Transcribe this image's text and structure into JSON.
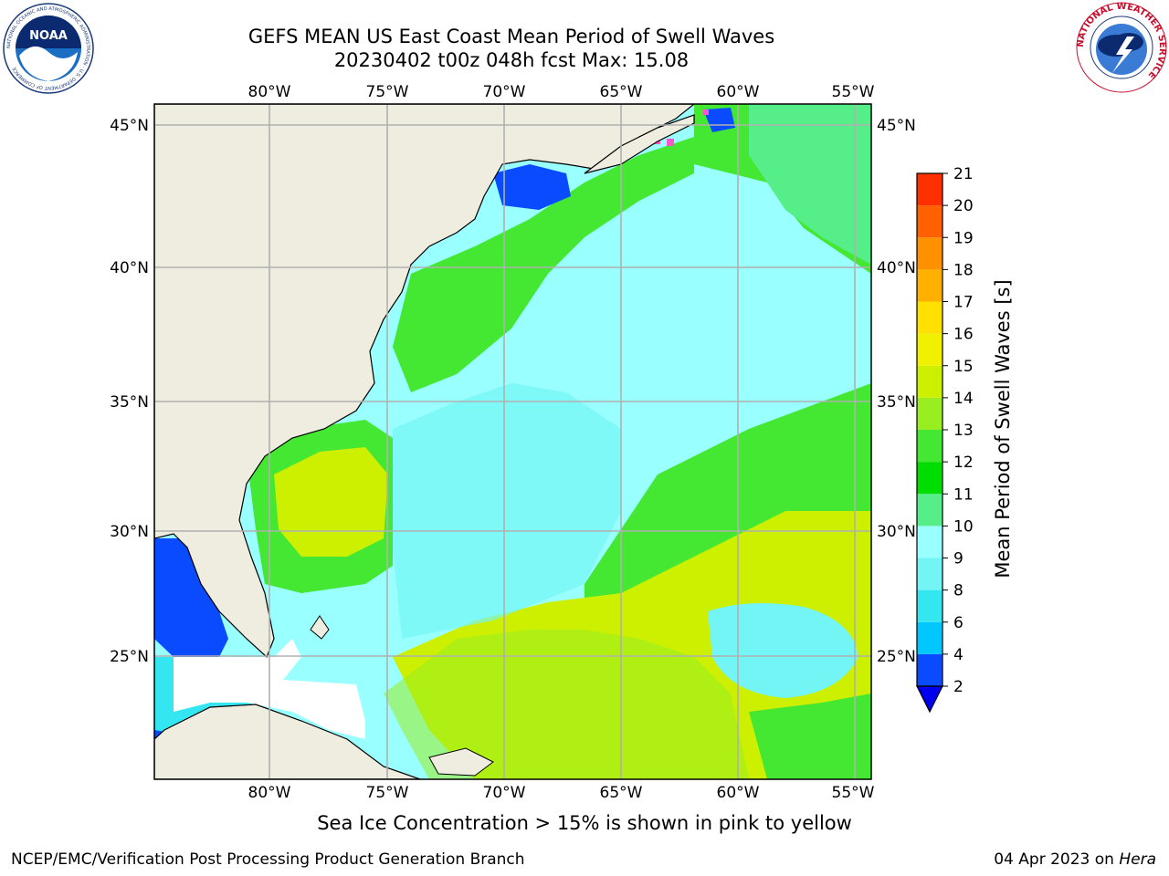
{
  "header": {
    "title_line1": "GEFS MEAN US East Coast Mean Period of Swell Waves",
    "title_line2": "20230402 t00z 048h fcst   Max: 15.08"
  },
  "chart_data": {
    "type": "heatmap",
    "variable": "Mean Period of Swell Waves",
    "colorbar_label": "Mean Period of Swell Waves [s]",
    "colorbar_ticks": [
      2,
      4,
      6,
      8,
      9,
      10,
      11,
      12,
      13,
      14,
      15,
      16,
      17,
      18,
      19,
      20,
      21
    ],
    "colorbar_colors": [
      "#0a4bff",
      "#00c8ff",
      "#33e6f0",
      "#73f5f5",
      "#99ffff",
      "#55ee88",
      "#00dd00",
      "#44e833",
      "#99ee22",
      "#ccf000",
      "#f0f000",
      "#ffe000",
      "#ffb000",
      "#ff9000",
      "#ff6000",
      "#ff3000",
      "#ff0000"
    ],
    "colorbar_extend": "min",
    "max_value": 15.08,
    "lon_ticks": [
      "80°W",
      "75°W",
      "70°W",
      "65°W",
      "60°W",
      "55°W"
    ],
    "lat_ticks": [
      "45°N",
      "40°N",
      "35°N",
      "30°N",
      "25°N"
    ],
    "lon_range": [
      -85,
      -54
    ],
    "lat_range": [
      20.5,
      45.8
    ],
    "grid": true,
    "land_color": "#eeede0",
    "ice_note": "Sea Ice Concentration > 15% is shown in pink to yellow"
  },
  "footer": {
    "left": "NCEP/EMC/Verification Post Processing Product Generation Branch",
    "date": "04 Apr 2023 on ",
    "machine": "Hera"
  },
  "logos": {
    "noaa_icon": "noaa-logo",
    "nws_icon": "nws-logo",
    "noaa_text": "NOAA",
    "noaa_ring_text": "NATIONAL OCEANIC AND ATMOSPHERIC ADMINISTRATION · U.S. DEPARTMENT OF COMMERCE",
    "nws_ring_text": "NATIONAL WEATHER SERVICE"
  }
}
